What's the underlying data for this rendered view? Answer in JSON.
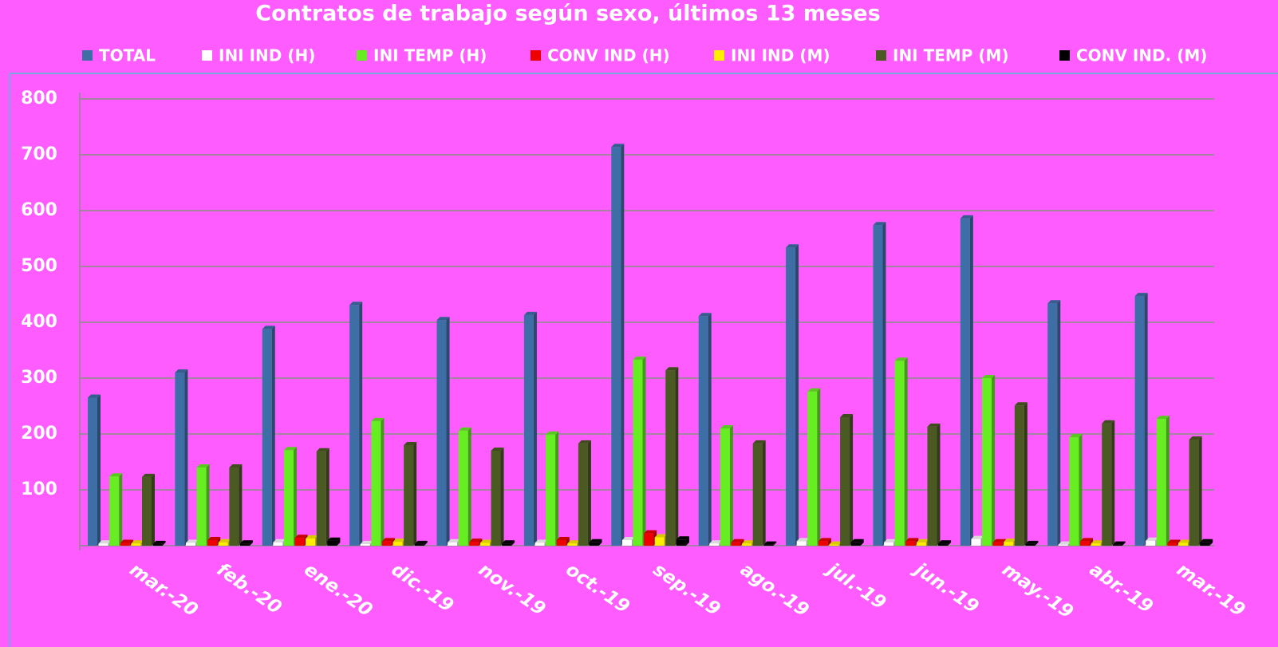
{
  "chart_data": {
    "type": "bar",
    "title": "Contratos de trabajo según sexo, últimos 13 meses",
    "categories": [
      "mar.-20",
      "feb.-20",
      "ene.-20",
      "dic.-19",
      "nov.-19",
      "oct.-19",
      "sep.-19",
      "ago.-19",
      "jul.-19",
      "jun.-19",
      "may.-19",
      "abr.-19",
      "mar.-19"
    ],
    "series": [
      {
        "name": "TOTAL",
        "color": "#3d6ea6",
        "values": [
          265,
          310,
          388,
          431,
          404,
          413,
          714,
          411,
          534,
          574,
          586,
          434,
          447
        ]
      },
      {
        "name": "INI IND (H)",
        "color": "#ffffff",
        "values": [
          4,
          5,
          6,
          3,
          6,
          5,
          10,
          4,
          8,
          6,
          12,
          2,
          9
        ]
      },
      {
        "name": "INI TEMP (H)",
        "color": "#66ee22",
        "values": [
          124,
          140,
          171,
          223,
          206,
          199,
          333,
          210,
          276,
          331,
          300,
          194,
          227
        ]
      },
      {
        "name": "CONV IND (H)",
        "color": "#ee0000",
        "values": [
          5,
          10,
          14,
          8,
          7,
          10,
          22,
          6,
          8,
          8,
          6,
          8,
          5
        ]
      },
      {
        "name": "INI IND (M)",
        "color": "#ffee00",
        "values": [
          4,
          6,
          13,
          7,
          5,
          4,
          15,
          4,
          2,
          6,
          7,
          4,
          5
        ]
      },
      {
        "name": "INI TEMP  (M)",
        "color": "#4a5a22",
        "values": [
          123,
          140,
          169,
          180,
          170,
          183,
          314,
          183,
          230,
          213,
          251,
          219,
          190
        ]
      },
      {
        "name": "CONV IND.  (M)",
        "color": "#000000",
        "values": [
          3,
          4,
          9,
          3,
          4,
          6,
          11,
          2,
          6,
          4,
          3,
          2,
          6
        ]
      }
    ],
    "ylim": [
      0,
      800
    ],
    "yticks": [
      100,
      200,
      300,
      400,
      500,
      600,
      700,
      800
    ],
    "grid": true
  }
}
